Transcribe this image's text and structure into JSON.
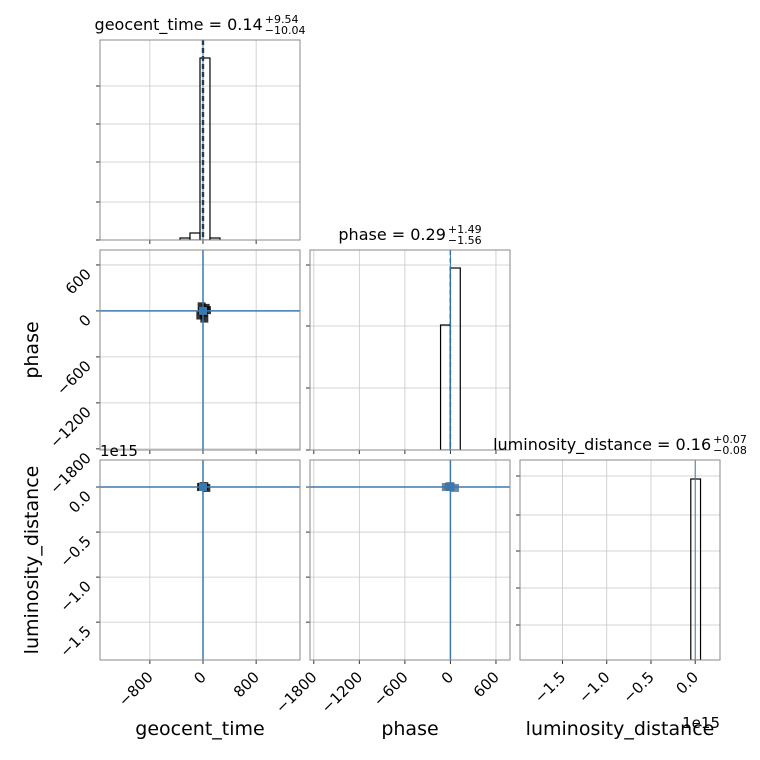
{
  "chart_data": [
    {
      "type": "histogram",
      "title": {
        "main": "geocent_time = 0.14",
        "upper": "+9.54",
        "lower": "−10.04"
      },
      "bins": [
        -346,
        -196,
        -45,
        105,
        256
      ],
      "counts": [
        0.01,
        0.035,
        0.91,
        0.01
      ],
      "color": "#000000",
      "quantiles": [
        -9.9,
        0.14,
        9.68
      ],
      "truth": 0,
      "xlim": [
        -1550,
        1460
      ],
      "xticks": [
        -800,
        0,
        800
      ],
      "ylim": [
        0,
        1
      ],
      "yticks": [
        0,
        0.19,
        0.39,
        0.58,
        0.77
      ],
      "grid": true
    },
    {
      "type": "scatter",
      "x": [
        -20,
        10,
        40,
        -40,
        60,
        20,
        -10
      ],
      "y": [
        60,
        -20,
        40,
        -60,
        10,
        -100,
        0
      ],
      "color": "#000000",
      "truth_x": 0,
      "truth_y": 0,
      "truth_color": "#3a78b0",
      "ylabel": "phase",
      "xlim": [
        -1550,
        1460
      ],
      "xticks": [
        -800,
        0,
        800
      ],
      "ylim": [
        -1815,
        795
      ],
      "yticks": [
        600,
        0,
        {
          "value": -600,
          "label": "−600"
        },
        {
          "value": -1200,
          "label": "−1200"
        },
        {
          "value": -1800,
          "label": "−1800"
        }
      ],
      "grid": true
    },
    {
      "type": "histogram",
      "title": {
        "main": "phase = 0.29",
        "upper": "+1.49",
        "lower": "−1.56"
      },
      "bins": [
        -130,
        0,
        130
      ],
      "counts": [
        0.625,
        0.91
      ],
      "color": "#000000",
      "quantiles": [
        -1.27,
        0.29,
        1.78
      ],
      "truth": 0,
      "xlim": [
        -1850,
        785
      ],
      "xticks": [
        -1800,
        -1200,
        -600,
        0,
        600
      ],
      "ylim": [
        0,
        1
      ],
      "yticks": [
        0,
        0.31,
        0.62,
        0.925
      ],
      "grid": true
    },
    {
      "type": "scatter",
      "x": [
        -30,
        20,
        50,
        -10
      ],
      "y": [
        0.0,
        0.01,
        -0.01,
        0.005
      ],
      "color": "#000000",
      "truth_x": 0,
      "truth_y": 0,
      "truth_color": "#3a78b0",
      "xlabel": "geocent_time",
      "ylabel": "luminosity_distance",
      "y_offset": "1e15",
      "xlim": [
        -1550,
        1460
      ],
      "xticks": [
        {
          "value": -800,
          "label": "−800"
        },
        0,
        800
      ],
      "ylim": [
        -1.92,
        0.3
      ],
      "yticks": [
        {
          "value": 0,
          "label": "0.0"
        },
        {
          "value": -0.5,
          "label": "−0.5"
        },
        {
          "value": -1.0,
          "label": "−1.0"
        },
        {
          "value": -1.5,
          "label": "−1.5"
        }
      ],
      "grid": true
    },
    {
      "type": "scatter",
      "x": [
        -60,
        0,
        60,
        -20
      ],
      "y": [
        0.0,
        0.01,
        -0.01,
        0.005
      ],
      "color": "#4a6a8a",
      "truth_x": 0,
      "truth_y": 0,
      "truth_color": "#3a78b0",
      "xlabel": "phase",
      "xlim": [
        -1850,
        785
      ],
      "xticks": [
        {
          "value": -1800,
          "label": "−1800"
        },
        {
          "value": -1200,
          "label": "−1200"
        },
        {
          "value": -600,
          "label": "−600"
        },
        0,
        600
      ],
      "ylim": [
        -1.92,
        0.3
      ],
      "yticks": [
        0,
        -0.5,
        -1.0,
        -1.5
      ],
      "grid": true
    },
    {
      "type": "histogram",
      "title": {
        "main": "luminosity_distance = 0.16",
        "upper": "+0.07",
        "lower": "−0.08"
      },
      "bins": [
        -0.05,
        0.06
      ],
      "counts": [
        0.905
      ],
      "color": "#000000",
      "truth": 0,
      "xlabel": "luminosity_distance",
      "x_offset": "1e15",
      "xlim": [
        -1.98,
        0.28
      ],
      "xticks": [
        {
          "value": -1.5,
          "label": "−1.5"
        },
        {
          "value": -1.0,
          "label": "−1.0"
        },
        {
          "value": -0.5,
          "label": "−0.5"
        },
        {
          "value": 0,
          "label": "0.0"
        }
      ],
      "ylim": [
        0,
        1
      ],
      "yticks": [
        0.175,
        0.36,
        0.545,
        0.725,
        0.92
      ],
      "grid": true
    }
  ]
}
